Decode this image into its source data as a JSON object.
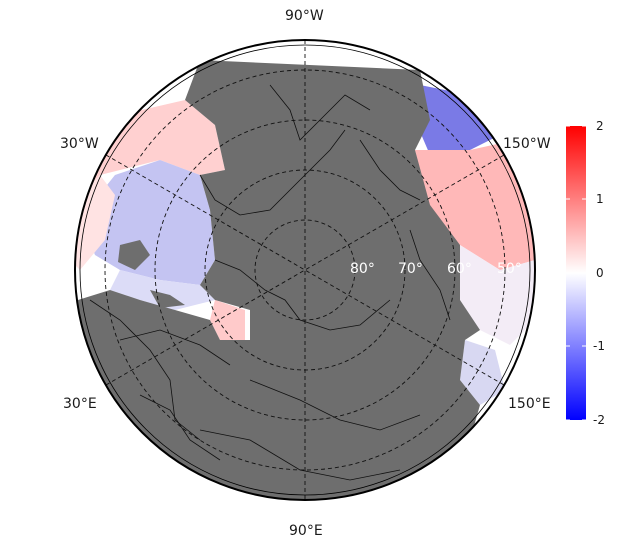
{
  "map": {
    "projection": "north polar stereographic",
    "land_color": "#6e6e6e",
    "ocean_background": "#ffffff",
    "graticule_style": "dashed",
    "lon_labels": {
      "top": "90°W",
      "upper_left": "30°W",
      "upper_right": "150°W",
      "lower_left": "30°E",
      "lower_right": "150°E",
      "bottom": "90°E"
    },
    "lat_labels": [
      "80°",
      "70°",
      "60°",
      "50°"
    ]
  },
  "colorbar": {
    "ticks": [
      "2",
      "1",
      "0",
      "-1",
      "-2"
    ],
    "colors": {
      "max": "#ff0000",
      "mid": "#ffffff",
      "min": "#0000ff"
    },
    "range": [
      -2,
      2
    ]
  }
}
